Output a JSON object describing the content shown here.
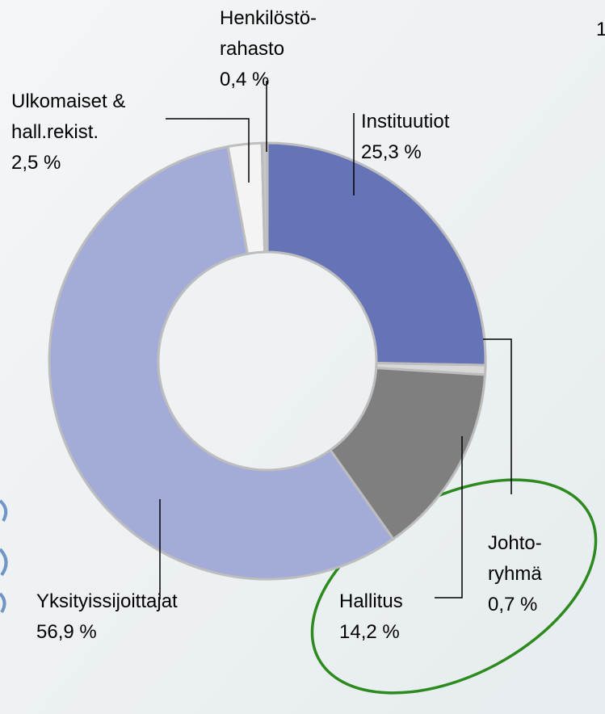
{
  "page_number": "1",
  "chart_data": {
    "type": "donut",
    "categories": [
      "Instituutiot",
      "Johto-\nryhmä",
      "Hallitus",
      "Yksityissijoittajat",
      "Ulkomaiset &\nhall.rekist.",
      "Henkilöstö-\nrahasto"
    ],
    "values": [
      25.3,
      0.7,
      14.2,
      56.9,
      2.5,
      0.4
    ],
    "value_labels": [
      "25,3 %",
      "0,7 %",
      "14,2 %",
      "56,9 %",
      "2,5 %",
      "0,4 %"
    ],
    "colors": [
      "#6573b7",
      "#d8d8d8",
      "#7f7f7f",
      "#a3acd8",
      "#f4f4f4",
      "#c8c8c8"
    ]
  }
}
